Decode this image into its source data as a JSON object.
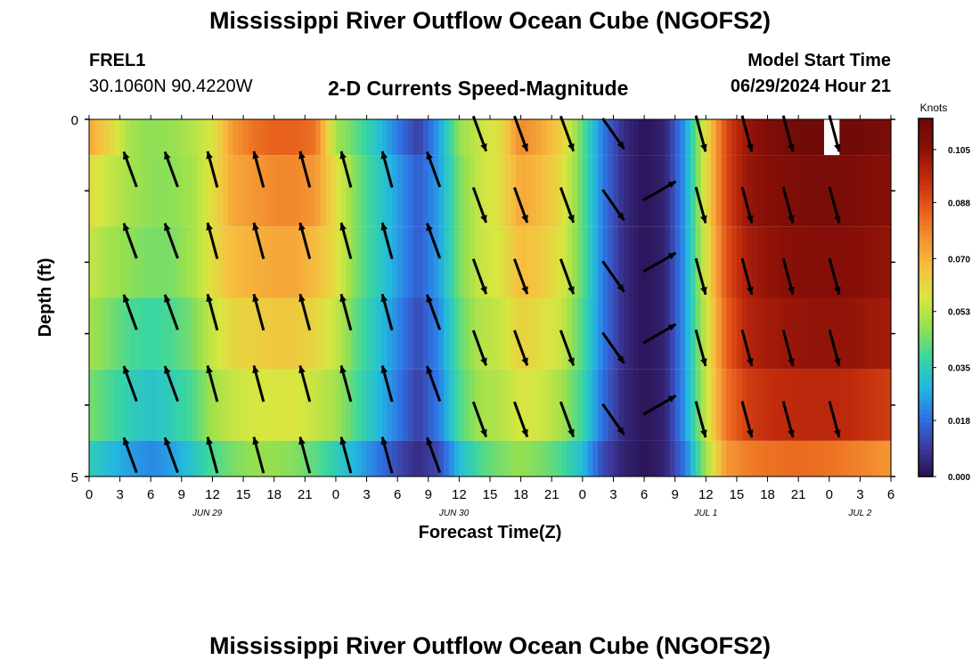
{
  "header": {
    "title": "Mississippi River Outflow Ocean Cube (NGOFS2)",
    "station_id": "FREL1",
    "station_coords": "30.1060N  90.4220W",
    "plot_title": "2-D Currents Speed-Magnitude",
    "model_start_label": "Model Start Time",
    "model_start_value": "06/29/2024 Hour 21"
  },
  "footer": {
    "title": "Mississippi River Outflow Ocean Cube (NGOFS2)"
  },
  "chart_data": {
    "type": "heatmap",
    "xlabel": "Forecast Time(Z)",
    "ylabel": "Depth (ft)",
    "x_range_hours": [
      0,
      78
    ],
    "x_tick_labels": [
      "0",
      "3",
      "6",
      "9",
      "12",
      "15",
      "18",
      "21",
      "0",
      "3",
      "6",
      "9",
      "12",
      "15",
      "18",
      "21",
      "0",
      "3",
      "6",
      "9",
      "12",
      "15",
      "18",
      "21",
      "0",
      "3",
      "6"
    ],
    "date_labels": [
      {
        "label": "JUN 29",
        "hour": 11.5
      },
      {
        "label": "JUN 30",
        "hour": 35.5
      },
      {
        "label": "JUL 1",
        "hour": 60
      },
      {
        "label": "JUL 2",
        "hour": 75
      }
    ],
    "y_tick_labels": [
      "0",
      "5"
    ],
    "ylim": [
      0,
      5
    ],
    "colorbar": {
      "title": "Knots",
      "tick_labels": [
        "0.105",
        "0.088",
        "0.070",
        "0.053",
        "0.035",
        "0.018",
        "0.000"
      ],
      "min": 0.0,
      "max": 0.115,
      "stops": [
        "#2a1050",
        "#3d3ca0",
        "#2e74e6",
        "#23b8e0",
        "#3ad6a0",
        "#95e050",
        "#d8e640",
        "#f6c040",
        "#f39030",
        "#e65a1a",
        "#c02a0c",
        "#8a1008",
        "#6a0a08"
      ]
    },
    "layers": [
      {
        "depth": 0.0,
        "values": [
          0.072,
          0.062,
          0.05,
          0.047,
          0.048,
          0.052,
          0.058,
          0.075,
          0.082,
          0.085,
          0.085,
          0.082,
          0.05,
          0.042,
          0.032,
          0.02,
          0.01,
          0.025,
          0.048,
          0.055,
          0.06,
          0.078,
          0.072,
          0.063,
          0.042,
          0.02,
          0.006,
          0.001,
          0.004,
          0.025,
          0.06,
          0.09,
          0.103,
          0.108,
          0.112,
          0.113,
          0.113,
          0.113,
          0.112,
          0.11
        ]
      },
      {
        "depth": 1.0,
        "values": [
          0.06,
          0.055,
          0.05,
          0.047,
          0.047,
          0.05,
          0.06,
          0.072,
          0.075,
          0.078,
          0.078,
          0.075,
          0.06,
          0.045,
          0.035,
          0.025,
          0.015,
          0.025,
          0.045,
          0.055,
          0.06,
          0.072,
          0.068,
          0.06,
          0.042,
          0.02,
          0.006,
          0.001,
          0.004,
          0.025,
          0.06,
          0.09,
          0.103,
          0.106,
          0.109,
          0.11,
          0.11,
          0.11,
          0.108,
          0.106
        ]
      },
      {
        "depth": 2.0,
        "values": [
          0.055,
          0.05,
          0.047,
          0.045,
          0.045,
          0.05,
          0.06,
          0.068,
          0.07,
          0.072,
          0.072,
          0.068,
          0.06,
          0.045,
          0.035,
          0.025,
          0.015,
          0.025,
          0.045,
          0.055,
          0.058,
          0.068,
          0.065,
          0.058,
          0.042,
          0.02,
          0.006,
          0.001,
          0.004,
          0.025,
          0.058,
          0.088,
          0.1,
          0.104,
          0.106,
          0.107,
          0.107,
          0.107,
          0.105,
          0.104
        ]
      },
      {
        "depth": 3.0,
        "values": [
          0.05,
          0.045,
          0.04,
          0.038,
          0.04,
          0.045,
          0.055,
          0.062,
          0.063,
          0.065,
          0.065,
          0.062,
          0.055,
          0.042,
          0.032,
          0.022,
          0.012,
          0.022,
          0.042,
          0.052,
          0.055,
          0.063,
          0.06,
          0.055,
          0.04,
          0.02,
          0.006,
          0.001,
          0.004,
          0.025,
          0.056,
          0.085,
          0.098,
          0.101,
          0.103,
          0.104,
          0.104,
          0.104,
          0.102,
          0.101
        ]
      },
      {
        "depth": 4.0,
        "values": [
          0.045,
          0.04,
          0.035,
          0.032,
          0.035,
          0.04,
          0.05,
          0.055,
          0.057,
          0.058,
          0.058,
          0.055,
          0.05,
          0.04,
          0.03,
          0.02,
          0.01,
          0.02,
          0.04,
          0.05,
          0.052,
          0.058,
          0.056,
          0.05,
          0.038,
          0.018,
          0.005,
          0.001,
          0.004,
          0.025,
          0.055,
          0.082,
          0.092,
          0.095,
          0.096,
          0.097,
          0.097,
          0.096,
          0.094,
          0.092
        ]
      },
      {
        "depth": 4.6,
        "values": [
          0.035,
          0.03,
          0.025,
          0.022,
          0.025,
          0.032,
          0.04,
          0.045,
          0.048,
          0.048,
          0.046,
          0.042,
          0.035,
          0.028,
          0.02,
          0.012,
          0.006,
          0.012,
          0.03,
          0.04,
          0.045,
          0.048,
          0.045,
          0.04,
          0.03,
          0.012,
          0.004,
          0.001,
          0.004,
          0.02,
          0.05,
          0.075,
          0.08,
          0.082,
          0.083,
          0.083,
          0.082,
          0.08,
          0.078,
          0.075
        ]
      }
    ],
    "missing_cell": {
      "depth": 0.0,
      "hour_start": 71.5,
      "hour_end": 73.0
    },
    "vectors": [
      {
        "hour": 4,
        "depths": [
          0.7,
          1.7,
          2.7,
          3.7,
          4.7
        ],
        "dir_deg": -20
      },
      {
        "hour": 8,
        "depths": [
          0.7,
          1.7,
          2.7,
          3.7,
          4.7
        ],
        "dir_deg": -20
      },
      {
        "hour": 12,
        "depths": [
          0.7,
          1.7,
          2.7,
          3.7,
          4.7
        ],
        "dir_deg": -15
      },
      {
        "hour": 16.5,
        "depths": [
          0.7,
          1.7,
          2.7,
          3.7,
          4.7
        ],
        "dir_deg": -15
      },
      {
        "hour": 21,
        "depths": [
          0.7,
          1.7,
          2.7,
          3.7,
          4.7
        ],
        "dir_deg": -15
      },
      {
        "hour": 25,
        "depths": [
          0.7,
          1.7,
          2.7,
          3.7,
          4.7
        ],
        "dir_deg": -15
      },
      {
        "hour": 29,
        "depths": [
          0.7,
          1.7,
          2.7,
          3.7,
          4.7
        ],
        "dir_deg": -15
      },
      {
        "hour": 33.5,
        "depths": [
          0.7,
          1.7,
          2.7,
          3.7,
          4.7
        ],
        "dir_deg": -20
      },
      {
        "hour": 38,
        "depths": [
          0.2,
          1.2,
          2.2,
          3.2,
          4.2
        ],
        "dir_deg": 160
      },
      {
        "hour": 42,
        "depths": [
          0.2,
          1.2,
          2.2,
          3.2,
          4.2
        ],
        "dir_deg": 160
      },
      {
        "hour": 46.5,
        "depths": [
          0.2,
          1.2,
          2.2,
          3.2,
          4.2
        ],
        "dir_deg": 160
      },
      {
        "hour": 51,
        "depths": [
          0.2,
          1.2,
          2.2,
          3.2,
          4.2
        ],
        "dir_deg": 145
      },
      {
        "hour": 55.5,
        "depths": [
          1.0,
          2.0,
          3.0,
          4.0
        ],
        "dir_deg": 60
      },
      {
        "hour": 59.5,
        "depths": [
          0.2,
          1.2,
          2.2,
          3.2,
          4.2
        ],
        "dir_deg": 165
      },
      {
        "hour": 64,
        "depths": [
          0.2,
          1.2,
          2.2,
          3.2,
          4.2
        ],
        "dir_deg": 165
      },
      {
        "hour": 68,
        "depths": [
          0.2,
          1.2,
          2.2,
          3.2,
          4.2
        ],
        "dir_deg": 165
      },
      {
        "hour": 72.5,
        "depths": [
          0.2,
          1.2,
          2.2,
          3.2,
          4.2
        ],
        "dir_deg": 165
      }
    ]
  }
}
